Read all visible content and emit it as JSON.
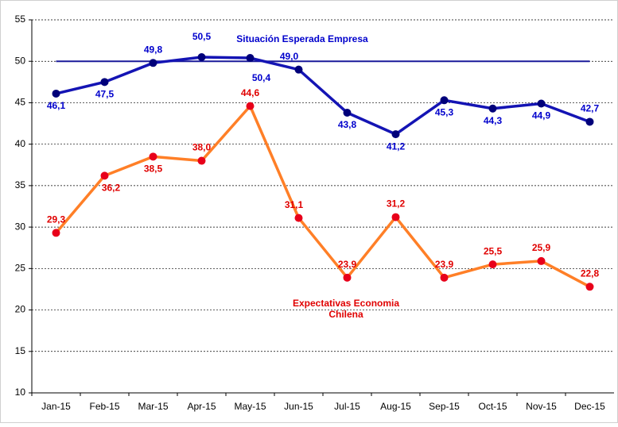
{
  "chart_data": {
    "type": "line",
    "categories": [
      "Jan-15",
      "Feb-15",
      "Mar-15",
      "Apr-15",
      "May-15",
      "Jun-15",
      "Jul-15",
      "Aug-15",
      "Sep-15",
      "Oct-15",
      "Nov-15",
      "Dec-15"
    ],
    "series": [
      {
        "name": "Situación Esperada Empresa",
        "color": "#1414b4",
        "marker_color": "#00007a",
        "label_color": "#0000cc",
        "values": [
          46.1,
          47.5,
          49.8,
          50.5,
          50.4,
          49.0,
          43.8,
          41.2,
          45.3,
          44.3,
          44.9,
          42.7
        ],
        "value_labels": [
          "46,1",
          "47,5",
          "49,8",
          "50,5",
          "50,4",
          "49,0",
          "43,8",
          "41,2",
          "45,3",
          "44,3",
          "44,9",
          "42,7"
        ]
      },
      {
        "name": "Expectativas Economia Chilena",
        "color": "#ff7f27",
        "marker_color": "#e8001a",
        "label_color": "#e00000",
        "values": [
          29.3,
          36.2,
          38.5,
          38.0,
          44.6,
          31.1,
          23.9,
          31.2,
          23.9,
          25.5,
          25.9,
          22.8
        ],
        "value_labels": [
          "29,3",
          "36,2",
          "38,5",
          "38,0",
          "44,6",
          "31,1",
          "23,9",
          "31,2",
          "23,9",
          "25,5",
          "25,9",
          "22,8"
        ]
      }
    ],
    "reference_line": {
      "value": 50,
      "color": "#1a1a9a"
    },
    "ylim": [
      10,
      55
    ],
    "yticks": [
      10,
      15,
      20,
      25,
      30,
      35,
      40,
      45,
      50,
      55
    ],
    "grid": true
  }
}
